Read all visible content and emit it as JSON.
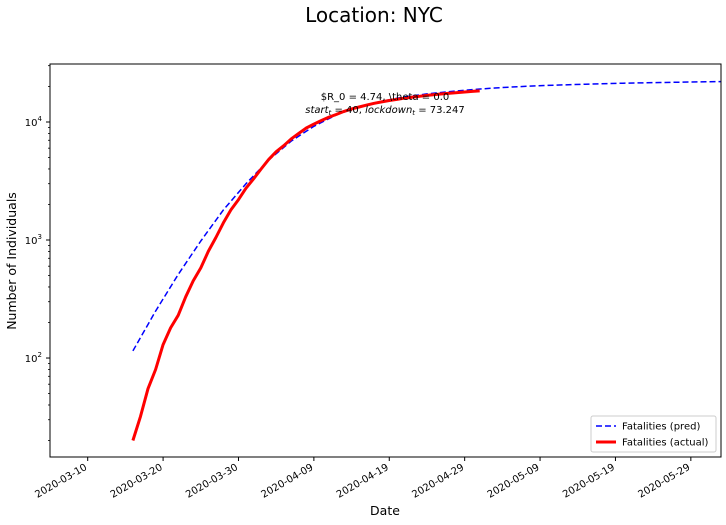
{
  "chart_data": {
    "type": "line",
    "title": "Location: NYC",
    "xlabel": "Date",
    "ylabel": "Number of Individuals",
    "yscale": "log",
    "xlim": [
      "2020-03-05",
      "2020-06-02"
    ],
    "ylim": [
      14.5,
      31000
    ],
    "x_ticks": [
      "2020-03-10",
      "2020-03-20",
      "2020-03-30",
      "2020-04-09",
      "2020-04-19",
      "2020-04-29",
      "2020-05-09",
      "2020-05-19",
      "2020-05-29"
    ],
    "y_ticks": [
      100,
      1000,
      10000
    ],
    "y_tick_labels": {
      "base": "10",
      "exponents": [
        "2",
        "3",
        "4"
      ]
    },
    "grid": false,
    "legend_position": "lower right",
    "annotation": {
      "line1": "$R_0 = 4.74, \\theta = 0.0",
      "line2_parts": [
        "start",
        "t",
        " = 40, ",
        "lockdown",
        "t",
        " = 73.247"
      ]
    },
    "series": [
      {
        "name": "Fatalities (pred)",
        "color": "#0000ff",
        "style": "dashed",
        "x": [
          "2020-03-16",
          "2020-03-19",
          "2020-03-22",
          "2020-03-25",
          "2020-03-28",
          "2020-03-31",
          "2020-04-03",
          "2020-04-06",
          "2020-04-09",
          "2020-04-12",
          "2020-04-15",
          "2020-04-18",
          "2020-04-21",
          "2020-04-24",
          "2020-04-27",
          "2020-04-30",
          "2020-05-03",
          "2020-05-06",
          "2020-05-10",
          "2020-05-15",
          "2020-05-20",
          "2020-05-25",
          "2020-05-30",
          "2020-06-02"
        ],
        "y": [
          115,
          250,
          510,
          980,
          1800,
          3000,
          4750,
          6900,
          9200,
          11500,
          13500,
          15000,
          16300,
          17300,
          18100,
          18800,
          19400,
          19900,
          20400,
          20900,
          21300,
          21600,
          21850,
          22000
        ]
      },
      {
        "name": "Fatalities (actual)",
        "color": "#ff0000",
        "style": "solid",
        "x": [
          "2020-03-16",
          "2020-03-17",
          "2020-03-18",
          "2020-03-19",
          "2020-03-20",
          "2020-03-21",
          "2020-03-22",
          "2020-03-23",
          "2020-03-24",
          "2020-03-25",
          "2020-03-26",
          "2020-03-27",
          "2020-03-28",
          "2020-03-29",
          "2020-03-30",
          "2020-03-31",
          "2020-04-01",
          "2020-04-02",
          "2020-04-03",
          "2020-04-04",
          "2020-04-05",
          "2020-04-06",
          "2020-04-07",
          "2020-04-08",
          "2020-04-09",
          "2020-04-10",
          "2020-04-11",
          "2020-04-12",
          "2020-04-13",
          "2020-04-14",
          "2020-04-15",
          "2020-04-16",
          "2020-04-17",
          "2020-04-18",
          "2020-04-19",
          "2020-04-20",
          "2020-04-21",
          "2020-04-22",
          "2020-04-23",
          "2020-04-24",
          "2020-04-25",
          "2020-04-26",
          "2020-04-27",
          "2020-04-28",
          "2020-04-29",
          "2020-04-30",
          "2020-05-01"
        ],
        "y": [
          20,
          32,
          55,
          80,
          130,
          180,
          230,
          330,
          450,
          580,
          800,
          1050,
          1400,
          1800,
          2200,
          2750,
          3300,
          4000,
          4800,
          5600,
          6300,
          7200,
          8000,
          8900,
          9600,
          10300,
          11000,
          11600,
          12300,
          12900,
          13400,
          13900,
          14400,
          14800,
          15200,
          15550,
          15900,
          16200,
          16500,
          16800,
          17050,
          17300,
          17550,
          17750,
          17950,
          18150,
          18350
        ]
      }
    ]
  }
}
